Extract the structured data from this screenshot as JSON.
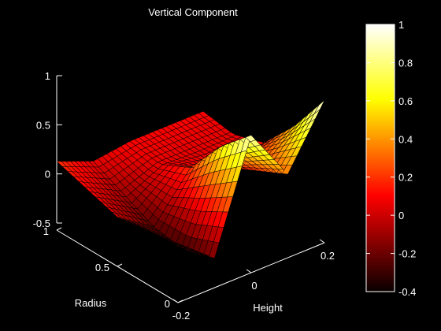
{
  "chart_data": {
    "type": "surface",
    "title": "Vertical Component",
    "xlabel": "Height",
    "ylabel": "Radius",
    "zlabel": "",
    "xlim": [
      -0.2,
      0.2
    ],
    "ylim": [
      0,
      1
    ],
    "zlim": [
      -0.5,
      1
    ],
    "x_ticks": [
      "-0.2",
      "0",
      "0.2"
    ],
    "y_ticks": [
      "0",
      "0.5",
      "1"
    ],
    "z_ticks": [
      "-0.5",
      "0",
      "0.5",
      "1"
    ],
    "colormap": "hot",
    "color_range": [
      -0.4,
      1
    ],
    "colorbar_ticks": [
      "-0.4",
      "-0.2",
      "0",
      "0.2",
      "0.4",
      "0.6",
      "0.8",
      "1"
    ],
    "grid": false,
    "colorbar_position": "right",
    "surface": {
      "x": [
        -0.2,
        -0.1,
        0,
        0.1,
        0.2
      ],
      "y": [
        0,
        0.25,
        0.5,
        0.75,
        1
      ],
      "z": [
        [
          0.1,
          -0.2,
          0.9,
          0.35,
          0.95
        ],
        [
          0.05,
          -0.3,
          0.6,
          0.2,
          0.5
        ],
        [
          0.0,
          -0.25,
          0.2,
          0.05,
          0.15
        ],
        [
          0.1,
          -0.1,
          0.05,
          0.05,
          0.05
        ],
        [
          0.2,
          0.05,
          0.1,
          0.1,
          0.1
        ]
      ]
    }
  }
}
